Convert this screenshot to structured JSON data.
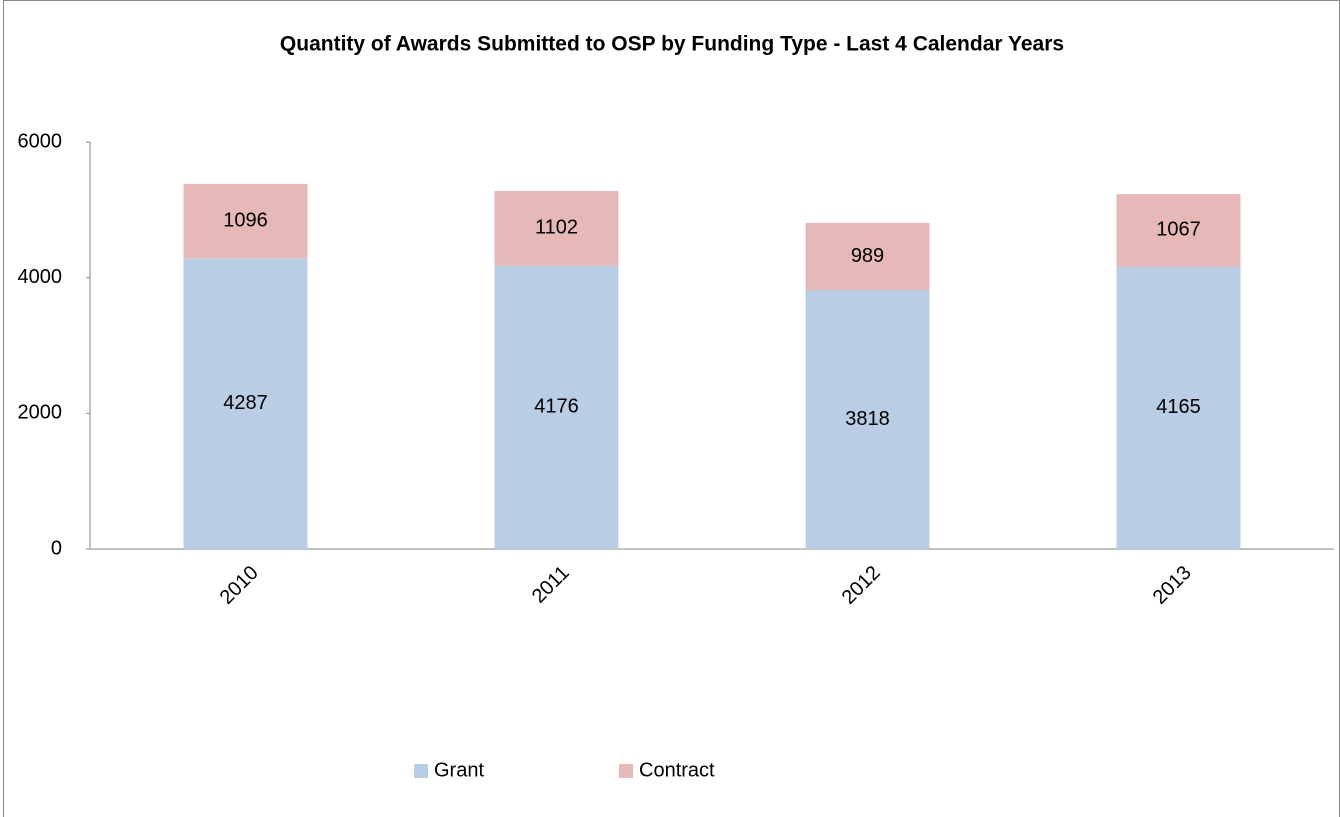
{
  "chart_data": {
    "type": "stacked_bar",
    "title": "Quantity of Awards Submitted to OSP by Funding Type - Last 4 Calendar Years",
    "categories": [
      "2010",
      "2011",
      "2012",
      "2013"
    ],
    "series": [
      {
        "name": "Grant",
        "color": "#b9cde5",
        "values": [
          4287,
          4176,
          3818,
          4165
        ]
      },
      {
        "name": "Contract",
        "color": "#e6b9b8",
        "values": [
          1096,
          1102,
          989,
          1067
        ]
      }
    ],
    "ylim": [
      0,
      6000
    ],
    "yticks": [
      0,
      2000,
      4000,
      6000
    ],
    "grid": false,
    "legend": "bottom",
    "data_labels": true
  }
}
